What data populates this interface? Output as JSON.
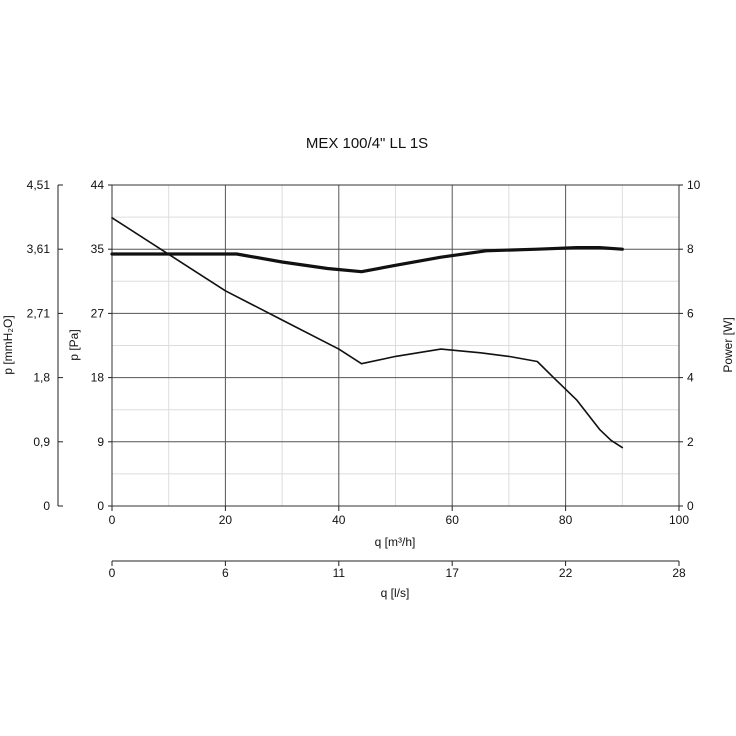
{
  "chart_data": {
    "type": "line",
    "title": "MEX 100/4\" LL 1S",
    "xlabel": "q [m³/h]",
    "x2label": "q [l/s]",
    "ylabel": "p [Pa]",
    "ylabel_outer": "p [mmH₂O]",
    "y2label": "Power [W]",
    "xlim": [
      0,
      100
    ],
    "ylim": [
      0,
      44
    ],
    "y2lim": [
      0,
      10
    ],
    "x_ticks": [
      0,
      20,
      40,
      60,
      80,
      100
    ],
    "x2_tick_labels": [
      "0",
      "6",
      "11",
      "17",
      "22",
      "28"
    ],
    "y_ticks": [
      0,
      9,
      18,
      27,
      35,
      44
    ],
    "y_outer_tick_labels": [
      "0",
      "0,9",
      "1,8",
      "2,71",
      "3,61",
      "4,51"
    ],
    "y2_ticks": [
      0,
      2,
      4,
      6,
      8,
      10
    ],
    "grid": true,
    "series": [
      {
        "axis": "y2",
        "x": [
          0,
          22,
          30,
          38,
          44,
          50,
          58,
          66,
          75,
          82,
          86,
          90
        ],
        "values": [
          7.85,
          7.85,
          7.6,
          7.4,
          7.3,
          7.5,
          7.75,
          7.95,
          8.0,
          8.05,
          8.05,
          8.0
        ]
      },
      {
        "axis": "y",
        "x": [
          0,
          10,
          20,
          30,
          40,
          44,
          50,
          58,
          65,
          70,
          75,
          78,
          82,
          86,
          88,
          90
        ],
        "values": [
          39.5,
          34.5,
          29.5,
          25.5,
          21.5,
          19.5,
          20.5,
          21.5,
          21.0,
          20.5,
          19.8,
          17.5,
          14.5,
          10.5,
          9.0,
          8.0
        ]
      }
    ]
  }
}
